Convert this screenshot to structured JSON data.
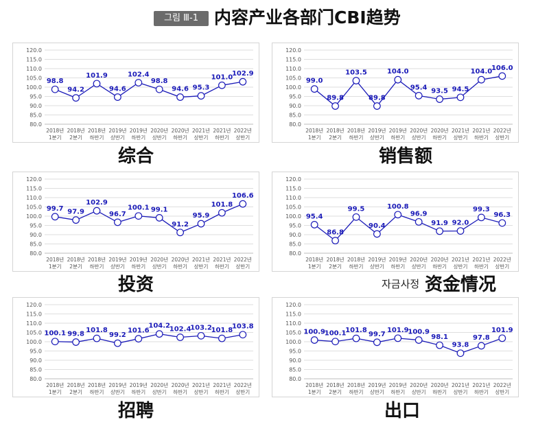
{
  "figure": {
    "badge": "그림 Ⅲ-1",
    "title": "内容产业各部门CBI趋势"
  },
  "chart_data": [
    {
      "type": "line",
      "title": "综合",
      "categories": [
        "2018년 1분기",
        "2018년 2분기",
        "2018년 하반기",
        "2019년 상반기",
        "2019년 하반기",
        "2020년 상반기",
        "2020년 하반기",
        "2021년 상반기",
        "2021년 하반기",
        "2022년 상반기"
      ],
      "values": [
        98.8,
        94.2,
        101.9,
        94.6,
        102.4,
        98.8,
        94.6,
        95.3,
        101.0,
        102.9
      ],
      "ylim": [
        80.0,
        120.0
      ],
      "ytick_step": 5,
      "grid": true,
      "color": "#1a1ab8"
    },
    {
      "type": "line",
      "title": "销售额",
      "categories": [
        "2018년 1분기",
        "2018년 2분기",
        "2018년 하반기",
        "2019년 상반기",
        "2019년 하반기",
        "2020년 상반기",
        "2020년 하반기",
        "2021년 상반기",
        "2021년 하반기",
        "2022년 상반기"
      ],
      "values": [
        99.0,
        89.8,
        103.5,
        89.8,
        104.0,
        95.4,
        93.5,
        94.5,
        104.0,
        106.0
      ],
      "ylim": [
        80.0,
        120.0
      ],
      "ytick_step": 5,
      "grid": true,
      "color": "#1a1ab8"
    },
    {
      "type": "line",
      "title": "投资",
      "categories": [
        "2018년 1분기",
        "2018년 2분기",
        "2018년 하반기",
        "2019년 상반기",
        "2019년 하반기",
        "2020년 상반기",
        "2020년 하반기",
        "2021년 상반기",
        "2021년 하반기",
        "2022년 상반기"
      ],
      "values": [
        99.7,
        97.9,
        102.9,
        96.7,
        100.1,
        99.1,
        91.2,
        95.9,
        101.8,
        106.6
      ],
      "ylim": [
        80.0,
        120.0
      ],
      "ytick_step": 5,
      "grid": true,
      "color": "#1a1ab8"
    },
    {
      "type": "line",
      "title": "资金情况",
      "subtitle": "자금사정",
      "categories": [
        "2018년 1분기",
        "2018년 2분기",
        "2018년 하반기",
        "2019년 상반기",
        "2019년 하반기",
        "2020년 상반기",
        "2020년 하반기",
        "2021년 상반기",
        "2021년 하반기",
        "2022년 상반기"
      ],
      "values": [
        95.4,
        86.8,
        99.5,
        90.4,
        100.8,
        96.9,
        91.9,
        92.0,
        99.3,
        96.3
      ],
      "ylim": [
        80.0,
        120.0
      ],
      "ytick_step": 5,
      "grid": true,
      "color": "#1a1ab8"
    },
    {
      "type": "line",
      "title": "招聘",
      "categories": [
        "2018년 1분기",
        "2018년 2분기",
        "2018년 하반기",
        "2019년 상반기",
        "2019년 하반기",
        "2020년 상반기",
        "2020년 하반기",
        "2021년 상반기",
        "2021년 하반기",
        "2022년 상반기"
      ],
      "values": [
        100.1,
        99.8,
        101.8,
        99.2,
        101.6,
        104.2,
        102.4,
        103.2,
        101.8,
        103.8
      ],
      "ylim": [
        80.0,
        120.0
      ],
      "ytick_step": 5,
      "grid": true,
      "color": "#1a1ab8"
    },
    {
      "type": "line",
      "title": "出口",
      "categories": [
        "2018년 1분기",
        "2018년 2분기",
        "2018년 하반기",
        "2019년 상반기",
        "2019년 하반기",
        "2020년 상반기",
        "2020년 하반기",
        "2021년 상반기",
        "2021년 하반기",
        "2022년 상반기"
      ],
      "values": [
        100.9,
        100.1,
        101.8,
        99.7,
        101.9,
        100.9,
        98.1,
        93.8,
        97.8,
        101.9
      ],
      "ylim": [
        80.0,
        120.0
      ],
      "ytick_step": 5,
      "grid": true,
      "color": "#1a1ab8"
    }
  ]
}
